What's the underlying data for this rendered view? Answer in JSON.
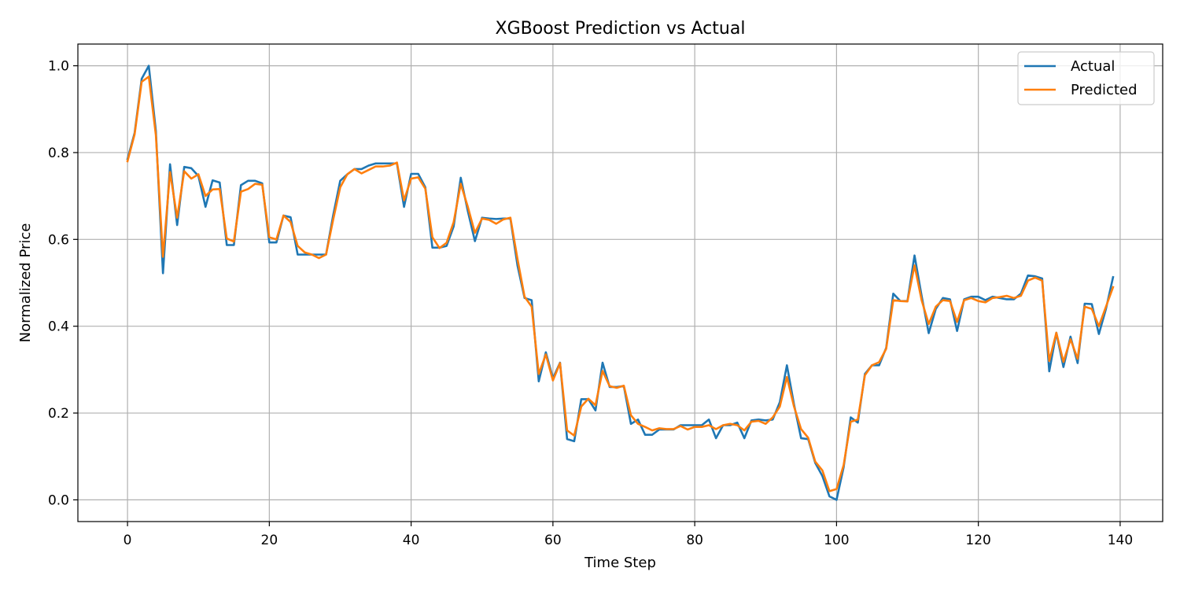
{
  "chart_data": {
    "type": "line",
    "title": "XGBoost Prediction vs Actual",
    "xlabel": "Time Step",
    "ylabel": "Normalized Price",
    "xlim": [
      -7,
      146
    ],
    "ylim": [
      -0.05,
      1.05
    ],
    "xticks": [
      0,
      20,
      40,
      60,
      80,
      100,
      120,
      140
    ],
    "xtick_labels": [
      "0",
      "20",
      "40",
      "60",
      "80",
      "100",
      "120",
      "140"
    ],
    "yticks": [
      0.0,
      0.2,
      0.4,
      0.6,
      0.8,
      1.0
    ],
    "ytick_labels": [
      "0.0",
      "0.2",
      "0.4",
      "0.6",
      "0.8",
      "1.0"
    ],
    "grid": true,
    "legend_position": "top-right",
    "series": [
      {
        "name": "Actual",
        "color": "#1f77b4",
        "values": [
          0.785,
          0.845,
          0.97,
          1.0,
          0.85,
          0.522,
          0.773,
          0.633,
          0.767,
          0.764,
          0.746,
          0.675,
          0.736,
          0.731,
          0.587,
          0.587,
          0.725,
          0.735,
          0.735,
          0.729,
          0.593,
          0.593,
          0.655,
          0.651,
          0.565,
          0.565,
          0.565,
          0.565,
          0.565,
          0.655,
          0.735,
          0.75,
          0.762,
          0.762,
          0.77,
          0.775,
          0.775,
          0.775,
          0.775,
          0.675,
          0.751,
          0.751,
          0.72,
          0.581,
          0.581,
          0.585,
          0.63,
          0.742,
          0.665,
          0.596,
          0.65,
          0.648,
          0.647,
          0.648,
          0.648,
          0.54,
          0.465,
          0.46,
          0.273,
          0.34,
          0.28,
          0.316,
          0.14,
          0.135,
          0.232,
          0.232,
          0.206,
          0.316,
          0.26,
          0.26,
          0.262,
          0.175,
          0.185,
          0.15,
          0.15,
          0.162,
          0.162,
          0.162,
          0.172,
          0.172,
          0.172,
          0.172,
          0.185,
          0.142,
          0.172,
          0.172,
          0.178,
          0.142,
          0.183,
          0.185,
          0.183,
          0.185,
          0.225,
          0.31,
          0.22,
          0.142,
          0.14,
          0.085,
          0.055,
          0.008,
          0.0,
          0.075,
          0.19,
          0.178,
          0.29,
          0.31,
          0.31,
          0.35,
          0.475,
          0.458,
          0.458,
          0.563,
          0.47,
          0.384,
          0.44,
          0.465,
          0.462,
          0.389,
          0.462,
          0.468,
          0.468,
          0.46,
          0.468,
          0.465,
          0.462,
          0.462,
          0.475,
          0.517,
          0.515,
          0.51,
          0.296,
          0.385,
          0.306,
          0.376,
          0.315,
          0.452,
          0.451,
          0.382,
          0.44,
          0.513
        ]
      },
      {
        "name": "Predicted",
        "color": "#ff7f0e",
        "values": [
          0.78,
          0.842,
          0.963,
          0.975,
          0.84,
          0.56,
          0.755,
          0.65,
          0.757,
          0.74,
          0.75,
          0.7,
          0.715,
          0.716,
          0.602,
          0.595,
          0.71,
          0.716,
          0.728,
          0.726,
          0.605,
          0.6,
          0.655,
          0.64,
          0.585,
          0.57,
          0.565,
          0.557,
          0.565,
          0.645,
          0.72,
          0.75,
          0.762,
          0.752,
          0.76,
          0.768,
          0.768,
          0.77,
          0.777,
          0.69,
          0.74,
          0.743,
          0.717,
          0.605,
          0.58,
          0.592,
          0.64,
          0.728,
          0.675,
          0.615,
          0.648,
          0.645,
          0.636,
          0.646,
          0.65,
          0.555,
          0.468,
          0.445,
          0.29,
          0.335,
          0.275,
          0.315,
          0.16,
          0.148,
          0.215,
          0.233,
          0.218,
          0.297,
          0.262,
          0.258,
          0.263,
          0.195,
          0.175,
          0.168,
          0.16,
          0.165,
          0.163,
          0.163,
          0.17,
          0.162,
          0.168,
          0.168,
          0.172,
          0.163,
          0.172,
          0.175,
          0.172,
          0.16,
          0.18,
          0.182,
          0.175,
          0.19,
          0.215,
          0.283,
          0.215,
          0.163,
          0.143,
          0.088,
          0.068,
          0.02,
          0.025,
          0.08,
          0.18,
          0.185,
          0.287,
          0.31,
          0.317,
          0.348,
          0.46,
          0.458,
          0.457,
          0.54,
          0.46,
          0.405,
          0.445,
          0.46,
          0.458,
          0.41,
          0.46,
          0.465,
          0.458,
          0.455,
          0.465,
          0.467,
          0.47,
          0.465,
          0.47,
          0.505,
          0.512,
          0.505,
          0.32,
          0.385,
          0.318,
          0.37,
          0.325,
          0.445,
          0.44,
          0.4,
          0.445,
          0.49
        ]
      }
    ]
  }
}
